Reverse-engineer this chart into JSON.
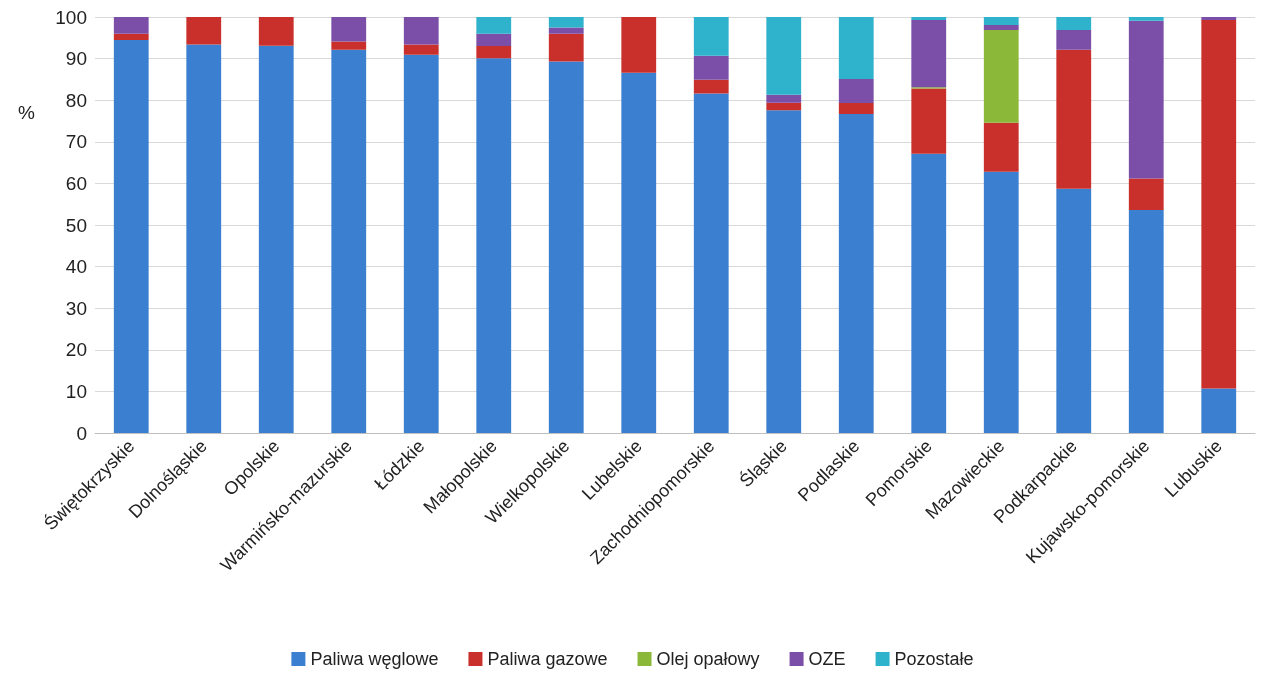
{
  "chart_data": {
    "type": "bar",
    "stacked": true,
    "ylabel": "%",
    "categories": [
      "Świętokrzyskie",
      "Dolnośląskie",
      "Opolskie",
      "Warmińsko-mazurskie",
      "Łódzkie",
      "Małopolskie",
      "Wielkopolskie",
      "Lubelskie",
      "Zachodniopomorskie",
      "Śląskie",
      "Podlaskie",
      "Pomorskie",
      "Mazowieckie",
      "Podkarpackie",
      "Kujawsko-pomorskie",
      "Lubuskie"
    ],
    "series": [
      {
        "name": "Paliwa węglowe",
        "color": "#3b7fd0",
        "values": [
          94.5,
          93.4,
          93.1,
          92.1,
          90.9,
          90.1,
          89.3,
          86.6,
          81.6,
          77.6,
          76.7,
          67.1,
          62.8,
          58.7,
          53.6,
          10.7
        ]
      },
      {
        "name": "Paliwa gazowe",
        "color": "#c9302c",
        "values": [
          1.5,
          6.6,
          6.9,
          2.0,
          2.5,
          2.9,
          6.7,
          13.4,
          3.3,
          1.8,
          2.6,
          15.7,
          11.8,
          33.4,
          7.6,
          88.6
        ]
      },
      {
        "name": "Olej opałowy",
        "color": "#8cb83a",
        "values": [
          0,
          0,
          0,
          0,
          0,
          0,
          0,
          0,
          0,
          0,
          0,
          0.3,
          22.3,
          0,
          0,
          0
        ]
      },
      {
        "name": "OZE",
        "color": "#7b4fa8",
        "values": [
          4.0,
          0,
          0,
          5.9,
          6.6,
          3.0,
          1.5,
          0,
          5.8,
          1.9,
          5.8,
          16.2,
          1.2,
          4.8,
          37.9,
          0.7
        ]
      },
      {
        "name": "Pozostałe",
        "color": "#2fb3cc",
        "values": [
          0,
          0,
          0,
          0,
          0,
          4.0,
          2.5,
          0,
          9.3,
          18.7,
          14.9,
          0.7,
          1.9,
          3.1,
          0.9,
          0
        ]
      }
    ],
    "ylim": [
      0,
      100
    ],
    "yticks": [
      0,
      10,
      20,
      30,
      40,
      50,
      60,
      70,
      80,
      90,
      100
    ],
    "grid": "y",
    "legend": "bottom"
  }
}
